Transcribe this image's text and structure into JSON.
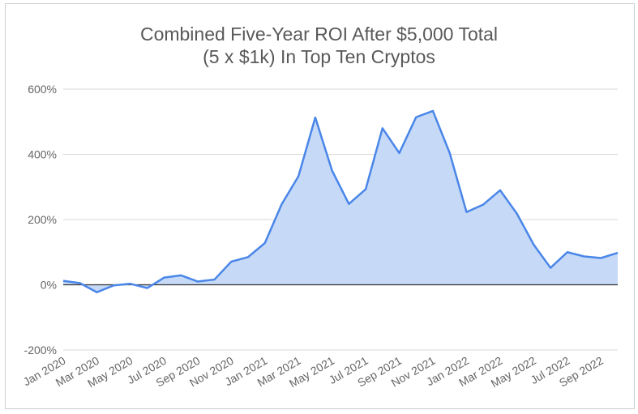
{
  "chart_data": {
    "type": "area",
    "title_line1": "Combined Five-Year ROI After $5,000 Total",
    "title_line2": "(5 x $1k) In Top Ten Cryptos",
    "xlabel": "",
    "ylabel": "",
    "ylim": [
      -200,
      600
    ],
    "yticks": [
      -200,
      0,
      200,
      400,
      600
    ],
    "ytick_labels": [
      "-200%",
      "0%",
      "200%",
      "400%",
      "600%"
    ],
    "grid": true,
    "legend": "none",
    "x": [
      "Jan 2020",
      "Feb 2020",
      "Mar 2020",
      "Apr 2020",
      "May 2020",
      "Jun 2020",
      "Jul 2020",
      "Aug 2020",
      "Sep 2020",
      "Oct 2020",
      "Nov 2020",
      "Dec 2020",
      "Jan 2021",
      "Feb 2021",
      "Mar 2021",
      "Apr 2021",
      "May 2021",
      "Jun 2021",
      "Jul 2021",
      "Aug 2021",
      "Sep 2021",
      "Oct 2021",
      "Nov 2021",
      "Dec 2021",
      "Jan 2022",
      "Feb 2022",
      "Mar 2022",
      "Apr 2022",
      "May 2022",
      "Jun 2022",
      "Jul 2022",
      "Aug 2022",
      "Sep 2022",
      "Oct 2022"
    ],
    "xtick_labels": [
      "Jan 2020",
      "Mar 2020",
      "May 2020",
      "Jul 2020",
      "Sep 2020",
      "Nov 2020",
      "Jan 2021",
      "Mar 2021",
      "May 2021",
      "Jul 2021",
      "Sep 2021",
      "Nov 2021",
      "Jan 2022",
      "Mar 2022",
      "May 2022",
      "Jul 2022",
      "Sep 2022"
    ],
    "series": [
      {
        "values": [
          12,
          5,
          -23,
          -2,
          3,
          -10,
          22,
          29,
          10,
          16,
          71,
          85,
          128,
          247,
          333,
          513,
          350,
          248,
          293,
          480,
          404,
          514,
          533,
          404,
          223,
          246,
          290,
          218,
          123,
          52,
          100,
          87,
          82,
          98
        ]
      }
    ],
    "colors": {
      "line": "#4a86e8",
      "fill": "#c6daf8",
      "gridline": "#d9d9d9",
      "zero_line": "#333333"
    }
  }
}
